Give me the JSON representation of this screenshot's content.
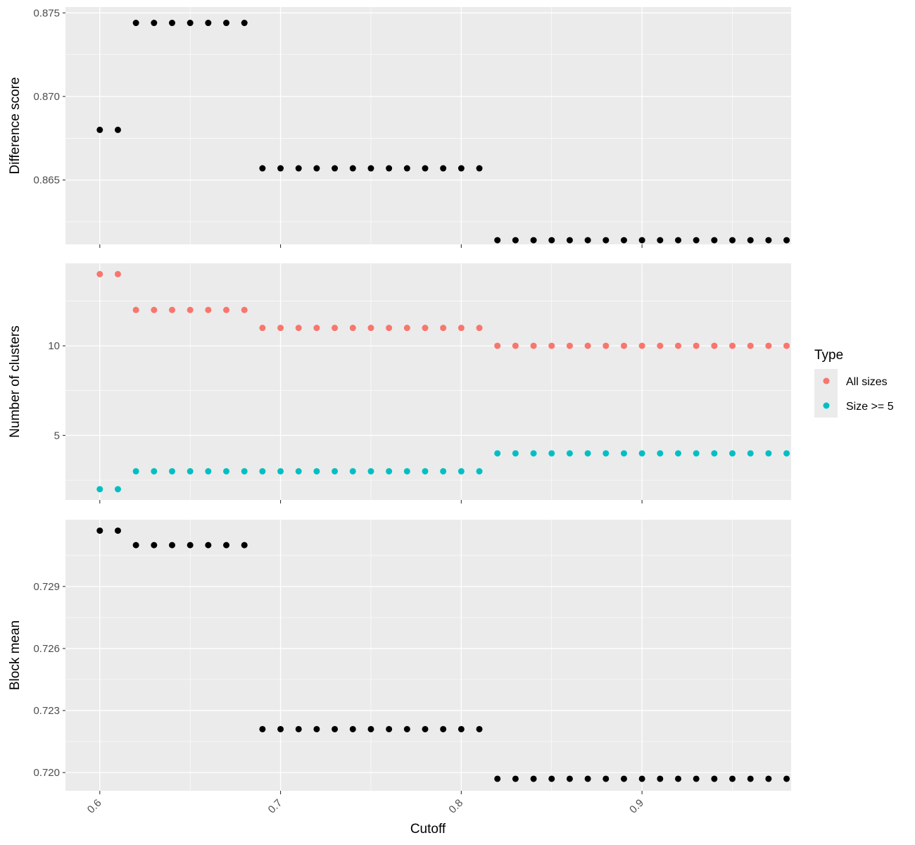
{
  "chart_data": {
    "type": "scatter",
    "x_label": "Cutoff",
    "x_ticks": [
      "0.6",
      "0.7",
      "0.8",
      "0.9"
    ],
    "x_tick_values": [
      0.6,
      0.7,
      0.8,
      0.9
    ],
    "xlim": [
      0.581,
      0.9825
    ],
    "grid": true,
    "legend": {
      "title": "Type",
      "position": "right",
      "entries": [
        {
          "label": "All sizes",
          "color": "#F8766D"
        },
        {
          "label": "Size >= 5",
          "color": "#00BFC4"
        }
      ]
    },
    "panels": [
      {
        "ylabel": "Difference score",
        "ylim": [
          0.86115,
          0.87535
        ],
        "y_ticks": [
          "0.865",
          "0.870",
          "0.875"
        ],
        "y_tick_values": [
          0.865,
          0.87,
          0.875
        ],
        "series": [
          {
            "color": "#000000",
            "points": [
              [
                0.6,
                0.868
              ],
              [
                0.61,
                0.868
              ],
              [
                0.62,
                0.8744
              ],
              [
                0.63,
                0.8744
              ],
              [
                0.64,
                0.8744
              ],
              [
                0.65,
                0.8744
              ],
              [
                0.66,
                0.8744
              ],
              [
                0.67,
                0.8744
              ],
              [
                0.68,
                0.8744
              ],
              [
                0.69,
                0.8657
              ],
              [
                0.7,
                0.8657
              ],
              [
                0.71,
                0.8657
              ],
              [
                0.72,
                0.8657
              ],
              [
                0.73,
                0.8657
              ],
              [
                0.74,
                0.8657
              ],
              [
                0.75,
                0.8657
              ],
              [
                0.76,
                0.8657
              ],
              [
                0.77,
                0.8657
              ],
              [
                0.78,
                0.8657
              ],
              [
                0.79,
                0.8657
              ],
              [
                0.8,
                0.8657
              ],
              [
                0.81,
                0.8657
              ],
              [
                0.82,
                0.8614
              ],
              [
                0.83,
                0.8614
              ],
              [
                0.84,
                0.8614
              ],
              [
                0.85,
                0.8614
              ],
              [
                0.86,
                0.8614
              ],
              [
                0.87,
                0.8614
              ],
              [
                0.88,
                0.8614
              ],
              [
                0.89,
                0.8614
              ],
              [
                0.9,
                0.8614
              ],
              [
                0.91,
                0.8614
              ],
              [
                0.92,
                0.8614
              ],
              [
                0.93,
                0.8614
              ],
              [
                0.94,
                0.8614
              ],
              [
                0.95,
                0.8614
              ],
              [
                0.96,
                0.8614
              ],
              [
                0.97,
                0.8614
              ],
              [
                0.98,
                0.8614
              ]
            ]
          }
        ]
      },
      {
        "ylabel": "Number of clusters",
        "ylim": [
          1.4,
          14.6
        ],
        "y_ticks": [
          "5",
          "10"
        ],
        "y_tick_values": [
          5,
          10
        ],
        "series": [
          {
            "name": "All sizes",
            "color": "#F8766D",
            "points": [
              [
                0.6,
                14
              ],
              [
                0.61,
                14
              ],
              [
                0.62,
                12
              ],
              [
                0.63,
                12
              ],
              [
                0.64,
                12
              ],
              [
                0.65,
                12
              ],
              [
                0.66,
                12
              ],
              [
                0.67,
                12
              ],
              [
                0.68,
                12
              ],
              [
                0.69,
                11
              ],
              [
                0.7,
                11
              ],
              [
                0.71,
                11
              ],
              [
                0.72,
                11
              ],
              [
                0.73,
                11
              ],
              [
                0.74,
                11
              ],
              [
                0.75,
                11
              ],
              [
                0.76,
                11
              ],
              [
                0.77,
                11
              ],
              [
                0.78,
                11
              ],
              [
                0.79,
                11
              ],
              [
                0.8,
                11
              ],
              [
                0.81,
                11
              ],
              [
                0.82,
                10
              ],
              [
                0.83,
                10
              ],
              [
                0.84,
                10
              ],
              [
                0.85,
                10
              ],
              [
                0.86,
                10
              ],
              [
                0.87,
                10
              ],
              [
                0.88,
                10
              ],
              [
                0.89,
                10
              ],
              [
                0.9,
                10
              ],
              [
                0.91,
                10
              ],
              [
                0.92,
                10
              ],
              [
                0.93,
                10
              ],
              [
                0.94,
                10
              ],
              [
                0.95,
                10
              ],
              [
                0.96,
                10
              ],
              [
                0.97,
                10
              ],
              [
                0.98,
                10
              ]
            ]
          },
          {
            "name": "Size >= 5",
            "color": "#00BFC4",
            "points": [
              [
                0.6,
                2
              ],
              [
                0.61,
                2
              ],
              [
                0.62,
                3
              ],
              [
                0.63,
                3
              ],
              [
                0.64,
                3
              ],
              [
                0.65,
                3
              ],
              [
                0.66,
                3
              ],
              [
                0.67,
                3
              ],
              [
                0.68,
                3
              ],
              [
                0.69,
                3
              ],
              [
                0.7,
                3
              ],
              [
                0.71,
                3
              ],
              [
                0.72,
                3
              ],
              [
                0.73,
                3
              ],
              [
                0.74,
                3
              ],
              [
                0.75,
                3
              ],
              [
                0.76,
                3
              ],
              [
                0.77,
                3
              ],
              [
                0.78,
                3
              ],
              [
                0.79,
                3
              ],
              [
                0.8,
                3
              ],
              [
                0.81,
                3
              ],
              [
                0.82,
                4
              ],
              [
                0.83,
                4
              ],
              [
                0.84,
                4
              ],
              [
                0.85,
                4
              ],
              [
                0.86,
                4
              ],
              [
                0.87,
                4
              ],
              [
                0.88,
                4
              ],
              [
                0.89,
                4
              ],
              [
                0.9,
                4
              ],
              [
                0.91,
                4
              ],
              [
                0.92,
                4
              ],
              [
                0.93,
                4
              ],
              [
                0.94,
                4
              ],
              [
                0.95,
                4
              ],
              [
                0.96,
                4
              ],
              [
                0.97,
                4
              ],
              [
                0.98,
                4
              ]
            ]
          }
        ]
      },
      {
        "ylabel": "Block mean",
        "ylim": [
          0.71912,
          0.73223
        ],
        "y_ticks": [
          "0.720",
          "0.723",
          "0.726",
          "0.729"
        ],
        "y_tick_values": [
          0.72,
          0.723,
          0.726,
          0.729
        ],
        "series": [
          {
            "color": "#000000",
            "points": [
              [
                0.6,
                0.7317
              ],
              [
                0.61,
                0.7317
              ],
              [
                0.62,
                0.731
              ],
              [
                0.63,
                0.731
              ],
              [
                0.64,
                0.731
              ],
              [
                0.65,
                0.731
              ],
              [
                0.66,
                0.731
              ],
              [
                0.67,
                0.731
              ],
              [
                0.68,
                0.731
              ],
              [
                0.69,
                0.7221
              ],
              [
                0.7,
                0.7221
              ],
              [
                0.71,
                0.7221
              ],
              [
                0.72,
                0.7221
              ],
              [
                0.73,
                0.7221
              ],
              [
                0.74,
                0.7221
              ],
              [
                0.75,
                0.7221
              ],
              [
                0.76,
                0.7221
              ],
              [
                0.77,
                0.7221
              ],
              [
                0.78,
                0.7221
              ],
              [
                0.79,
                0.7221
              ],
              [
                0.8,
                0.7221
              ],
              [
                0.81,
                0.7221
              ],
              [
                0.82,
                0.7197
              ],
              [
                0.83,
                0.7197
              ],
              [
                0.84,
                0.7197
              ],
              [
                0.85,
                0.7197
              ],
              [
                0.86,
                0.7197
              ],
              [
                0.87,
                0.7197
              ],
              [
                0.88,
                0.7197
              ],
              [
                0.89,
                0.7197
              ],
              [
                0.9,
                0.7197
              ],
              [
                0.91,
                0.7197
              ],
              [
                0.92,
                0.7197
              ],
              [
                0.93,
                0.7197
              ],
              [
                0.94,
                0.7197
              ],
              [
                0.95,
                0.7197
              ],
              [
                0.96,
                0.7197
              ],
              [
                0.97,
                0.7197
              ],
              [
                0.98,
                0.7197
              ]
            ]
          }
        ]
      }
    ]
  }
}
